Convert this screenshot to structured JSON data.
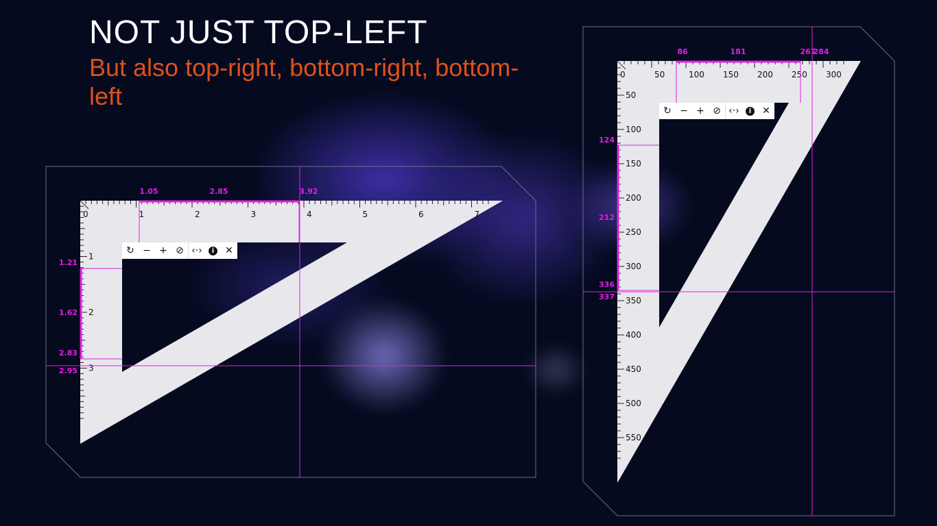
{
  "heading": {
    "title": "NOT JUST TOP-LEFT",
    "subtitle": "But also top-right, bottom-right, bottom-left"
  },
  "colors": {
    "measure": "#e020e0",
    "ruler": "#e8e8ec",
    "background": "#050a1f",
    "subtitle": "#e0501a"
  },
  "toolbar": {
    "icons": [
      "rotate-icon",
      "zoom-out-icon",
      "zoom-in-icon",
      "reset-icon",
      "flip-icon",
      "info-icon",
      "close-icon"
    ],
    "glyphs": [
      "↻",
      "−",
      "+",
      "⊘",
      "‹·›",
      "i",
      "✕"
    ]
  },
  "left_ruler": {
    "top_ticks": [
      "0",
      "1",
      "2",
      "3",
      "4",
      "5",
      "6",
      "7"
    ],
    "side_ticks": [
      "1",
      "2",
      "3"
    ],
    "top_measure": [
      "1.05",
      "2.85",
      "3.92"
    ],
    "side_measure": [
      "1.21",
      "1.62",
      "2.83",
      "2.95"
    ]
  },
  "right_ruler": {
    "top_ticks": [
      "0",
      "50",
      "100",
      "150",
      "200",
      "250",
      "300"
    ],
    "side_ticks": [
      "50",
      "100",
      "150",
      "200",
      "250",
      "300",
      "350",
      "400",
      "450",
      "500",
      "550"
    ],
    "top_measure": [
      "86",
      "181",
      "267",
      "284"
    ],
    "side_measure": [
      "124",
      "212",
      "336",
      "337"
    ]
  }
}
